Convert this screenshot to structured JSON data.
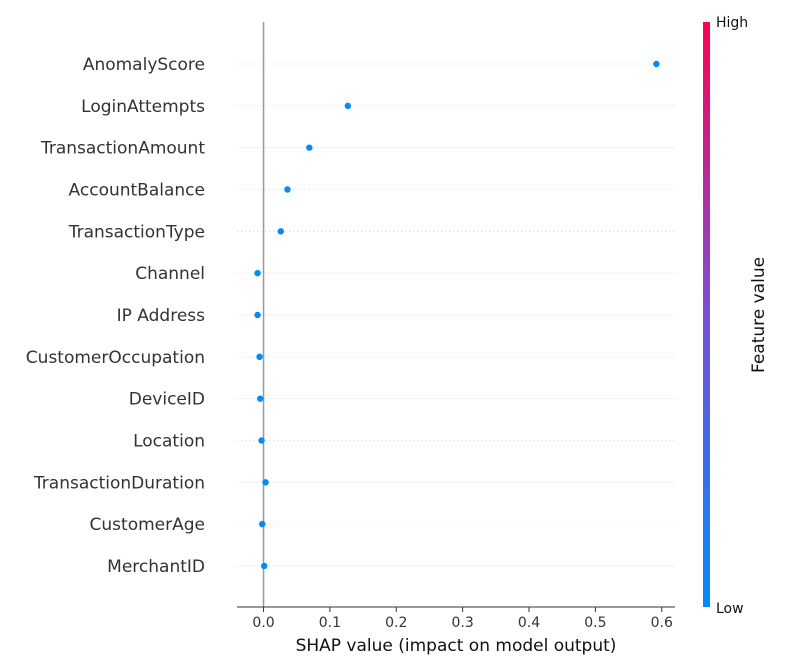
{
  "chart_data": {
    "type": "scatter",
    "subtype": "shap-summary",
    "title": "",
    "xlabel": "SHAP value (impact on model output)",
    "xlim": [
      -0.04,
      0.62
    ],
    "xticks": [
      "0.0",
      "0.1",
      "0.2",
      "0.3",
      "0.4",
      "0.5",
      "0.6"
    ],
    "features": [
      "AnomalyScore",
      "LoginAttempts",
      "TransactionAmount",
      "AccountBalance",
      "TransactionType",
      "Channel",
      "IP Address",
      "CustomerOccupation",
      "DeviceID",
      "Location",
      "TransactionDuration",
      "CustomerAge",
      "MerchantID"
    ],
    "shap_values": [
      0.592,
      0.127,
      0.069,
      0.036,
      0.026,
      -0.009,
      -0.009,
      -0.006,
      -0.005,
      -0.003,
      0.003,
      -0.002,
      0.001
    ],
    "feature_value_level": [
      0,
      0,
      0,
      0,
      0,
      0,
      0,
      0,
      0,
      0,
      0,
      0,
      0
    ],
    "colorbar": {
      "title": "Feature value",
      "high_label": "High",
      "low_label": "Low",
      "low_color": "#008BFB",
      "mid_color": "#7B4FD9",
      "high_color": "#FF0052"
    },
    "zero_line": true,
    "grid": "horizontal dotted per feature"
  }
}
